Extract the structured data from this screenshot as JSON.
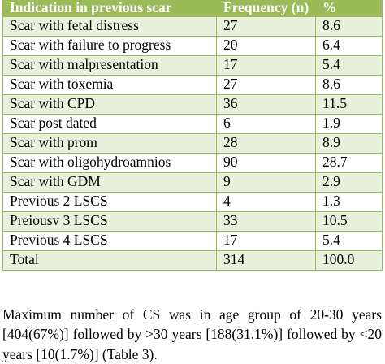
{
  "table": {
    "headers": [
      "Indication in previous scar",
      "Frequency (n)",
      "%"
    ],
    "rows": [
      [
        "Scar with fetal distress",
        "27",
        "8.6"
      ],
      [
        "Scar with failure to progress",
        "20",
        "6.4"
      ],
      [
        "Scar with malpresentation",
        "17",
        "5.4"
      ],
      [
        "Scar with toxemia",
        "27",
        "8.6"
      ],
      [
        "Scar with CPD",
        "36",
        "11.5"
      ],
      [
        "Scar post dated",
        "6",
        "1.9"
      ],
      [
        "Scar with prom",
        "28",
        "8.9"
      ],
      [
        "Scar with oligohydroamnios",
        "90",
        "28.7"
      ],
      [
        "Scar with GDM",
        "9",
        "2.9"
      ],
      [
        "Previous 2 LSCS",
        "4",
        "1.3"
      ],
      [
        "Preiousv 3 LSCS",
        "33",
        "10.5"
      ],
      [
        "Previous 4 LSCS",
        "17",
        "5.4"
      ],
      [
        "Total",
        "314",
        "100.0"
      ]
    ]
  },
  "paragraph": {
    "text": "Maximum number of CS was in age group of 20-30 years [404(67%)] followed by >30 years [188(31.1%)] followed by <20 years [10(1.7%)] (Table 3)."
  },
  "colors": {
    "header_bg": "#9bbb59",
    "header_text": "#ffffff",
    "row_shade": "#e9f0db",
    "border": "#9bbb59"
  }
}
